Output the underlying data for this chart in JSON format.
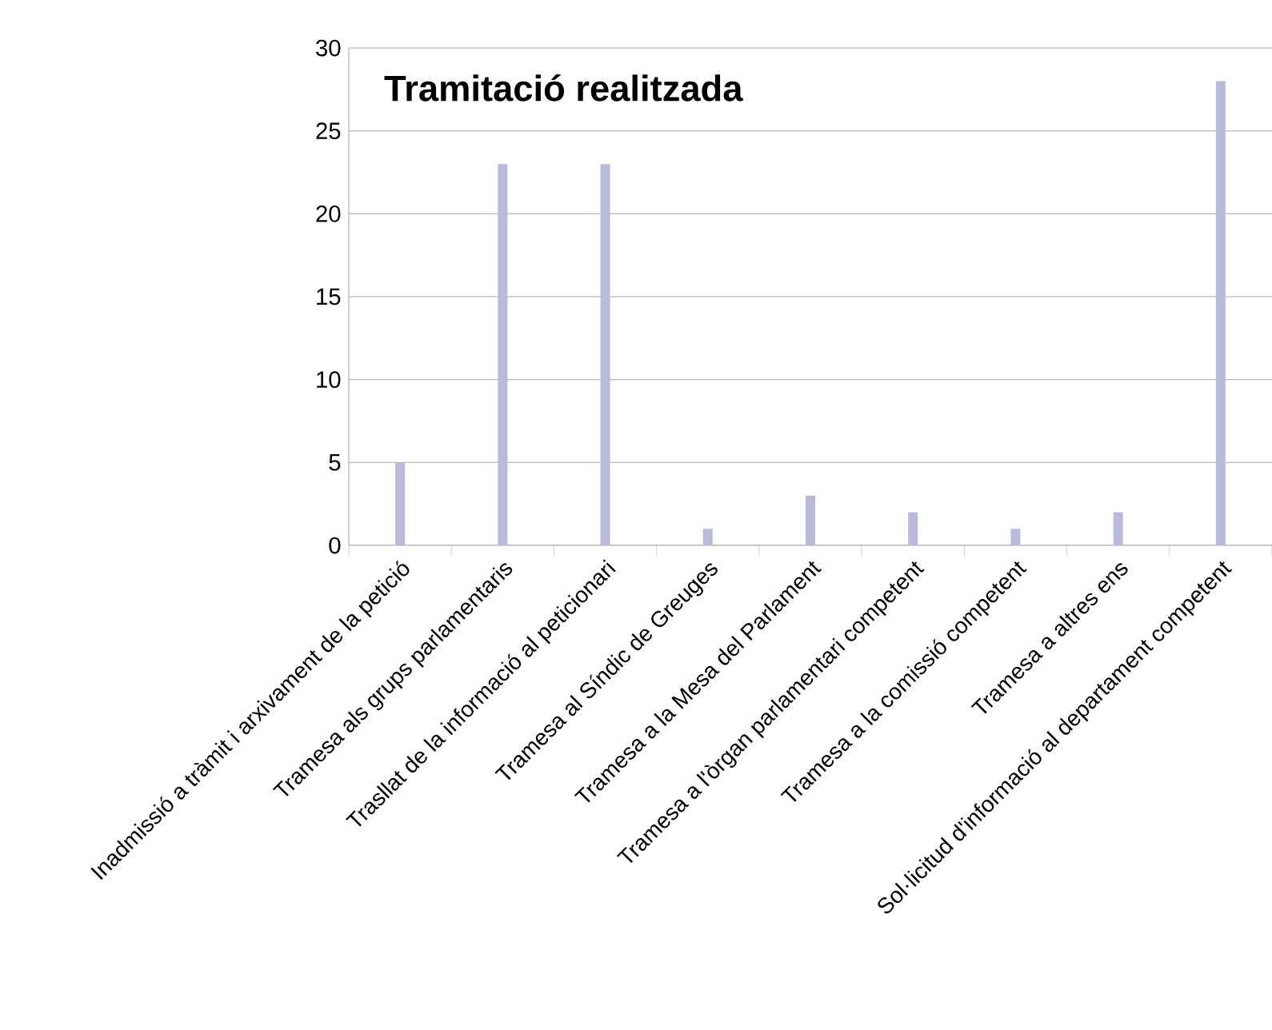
{
  "chart_data": {
    "type": "bar",
    "title": "Tramitació realitzada",
    "categories": [
      "Inadmissió a tràmit i arxivament de la petició",
      "Tramesa als grups parlamentaris",
      "Trasllat de la informació al peticionari",
      "Tramesa al Síndic de Greuges",
      "Tramesa a la Mesa del Parlament",
      "Tramesa a l'òrgan parlamentari competent",
      "Tramesa a la comissió competent",
      "Tramesa a altres ens",
      "Sol·licitud d'informació al departament competent"
    ],
    "values": [
      5,
      23,
      23,
      1,
      3,
      2,
      1,
      2,
      28
    ],
    "color": "#b9b9d9",
    "ylim": [
      0,
      30
    ],
    "yticks": [
      0,
      5,
      10,
      15,
      20,
      25,
      30
    ],
    "grid": "y"
  }
}
